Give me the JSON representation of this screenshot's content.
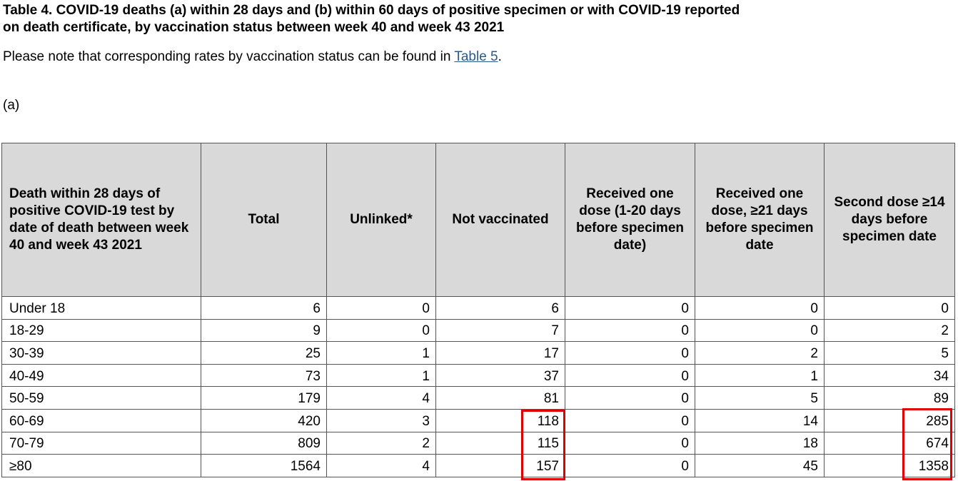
{
  "heading": {
    "line1": "Table 4. COVID-19 deaths (a) within 28 days and (b) within 60 days of positive specimen or with COVID-19 reported",
    "line2": "on death certificate, by vaccination status between week 40 and week 43 2021"
  },
  "note": {
    "text_before": "Please note that corresponding rates by vaccination status can be found in ",
    "link_text": "Table 5",
    "text_after": "."
  },
  "section_label": "(a)",
  "table": {
    "columns": [
      "Death within 28 days of positive COVID-19 test by date of death between week 40 and week 43 2021",
      "Total",
      "Unlinked*",
      "Not vaccinated",
      "Received one dose (1-20 days before specimen date)",
      "Received one dose, ≥21 days before specimen date",
      "Second dose ≥14 days before specimen date"
    ],
    "rows": [
      [
        "Under 18",
        "6",
        "0",
        "6",
        "0",
        "0",
        "0"
      ],
      [
        "18-29",
        "9",
        "0",
        "7",
        "0",
        "0",
        "2"
      ],
      [
        "30-39",
        "25",
        "1",
        "17",
        "0",
        "2",
        "5"
      ],
      [
        "40-49",
        "73",
        "1",
        "37",
        "0",
        "1",
        "34"
      ],
      [
        "50-59",
        "179",
        "4",
        "81",
        "0",
        "5",
        "89"
      ],
      [
        "60-69",
        "420",
        "3",
        "118",
        "0",
        "14",
        "285"
      ],
      [
        "70-79",
        "809",
        "2",
        "115",
        "0",
        "18",
        "674"
      ],
      [
        "≥80",
        "1564",
        "4",
        "157",
        "0",
        "45",
        "1358"
      ]
    ]
  },
  "highlight_color": "#e00000",
  "link_color": "#2a5a8c",
  "header_bg": "#d9d9d9"
}
